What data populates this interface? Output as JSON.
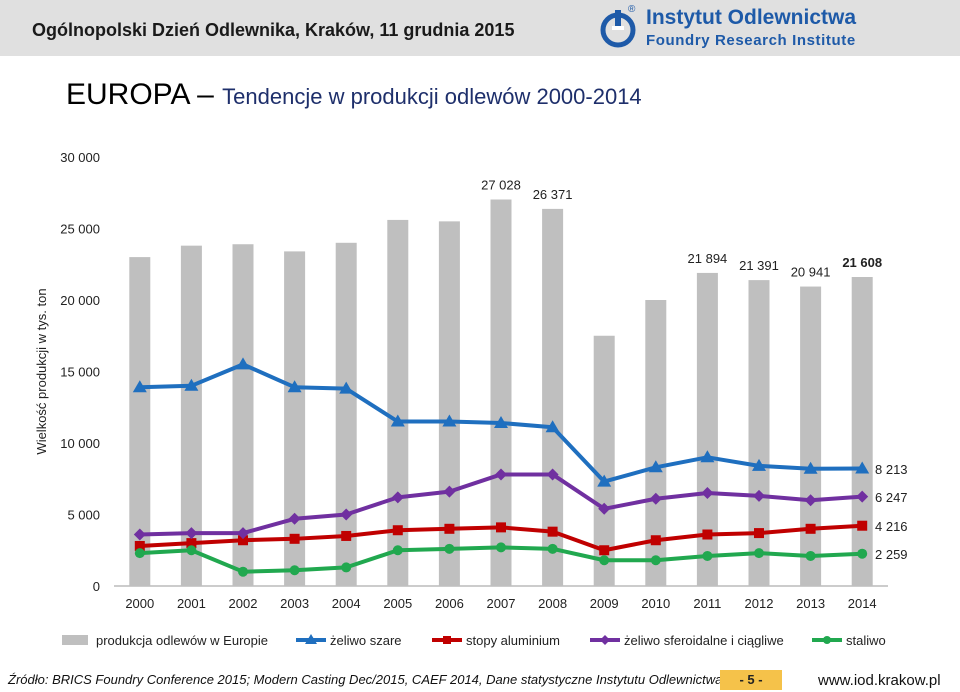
{
  "header": {
    "title": "Ogólnopolski Dzień Odlewnika, Kraków, 11 grudnia 2015",
    "logo_name": "Instytut Odlewnictwa",
    "logo_sub": "Foundry Research Institute",
    "logo_reg": "®"
  },
  "main_title": {
    "region": "EUROPA",
    "dash": " – ",
    "subtitle": "Tendencje w produkcji odlewów 2000-2014"
  },
  "colors": {
    "bar": "#bfbfbf",
    "zeliwo_szare": "#1f6fbf",
    "stopy_aluminium": "#c00000",
    "zeliwo_sferoidalne": "#7030a0",
    "staliwo": "#21a84f"
  },
  "chart_data": {
    "type": "bar+line",
    "title": "EUROPA – Tendencje w produkcji odlewów 2000-2014",
    "ylabel": "Wielkość produkcji w tys. ton",
    "ylim": [
      0,
      30000
    ],
    "yticks": [
      "0",
      "5 000",
      "10 000",
      "15 000",
      "20 000",
      "25 000",
      "30 000"
    ],
    "ytick_values": [
      0,
      5000,
      10000,
      15000,
      20000,
      25000,
      30000
    ],
    "categories": [
      "2000",
      "2001",
      "2002",
      "2003",
      "2004",
      "2005",
      "2006",
      "2007",
      "2008",
      "2009",
      "2010",
      "2011",
      "2012",
      "2013",
      "2014"
    ],
    "bar_series": {
      "name": "produkcja odlewów w Europie",
      "values": [
        23000,
        23800,
        23900,
        23400,
        24000,
        25600,
        25500,
        27028,
        26371,
        17500,
        20000,
        21894,
        21391,
        20941,
        21608
      ]
    },
    "bar_labels": [
      {
        "index": 7,
        "text": "27 028",
        "bold": false
      },
      {
        "index": 8,
        "text": "26 371",
        "bold": false
      },
      {
        "index": 11,
        "text": "21 894",
        "bold": false
      },
      {
        "index": 12,
        "text": "21 391",
        "bold": false
      },
      {
        "index": 13,
        "text": "20 941",
        "bold": false
      },
      {
        "index": 14,
        "text": "21 608",
        "bold": true
      }
    ],
    "line_series": [
      {
        "name": "żeliwo szare",
        "key": "zeliwo_szare",
        "marker": "triangle",
        "end_label": "8 213",
        "values": [
          13900,
          14000,
          15500,
          13900,
          13800,
          11500,
          11500,
          11400,
          11100,
          7300,
          8300,
          9000,
          8400,
          8200,
          8213
        ]
      },
      {
        "name": "stopy aluminium",
        "key": "stopy_aluminium",
        "marker": "square",
        "end_label": "4 216",
        "values": [
          2800,
          3000,
          3200,
          3300,
          3500,
          3900,
          4000,
          4100,
          3800,
          2500,
          3200,
          3600,
          3700,
          4000,
          4216
        ]
      },
      {
        "name": "żeliwo sferoidalne i ciągliwe",
        "key": "zeliwo_sferoidalne",
        "marker": "diamond",
        "end_label": "6 247",
        "values": [
          3600,
          3700,
          3700,
          4700,
          5000,
          6200,
          6600,
          7800,
          7800,
          5400,
          6100,
          6500,
          6300,
          6000,
          6247
        ]
      },
      {
        "name": "staliwo",
        "key": "staliwo",
        "marker": "circle",
        "end_label": "2 259",
        "values": [
          2300,
          2500,
          1000,
          1100,
          1300,
          2500,
          2600,
          2700,
          2600,
          1800,
          1800,
          2100,
          2300,
          2100,
          2259
        ]
      }
    ],
    "legend": [
      "produkcja odlewów w Europie",
      "żeliwo szare",
      "stopy aluminium",
      "żeliwo sferoidalne i ciągliwe",
      "staliwo"
    ],
    "legend_position": "bottom",
    "grid": false
  },
  "footer": {
    "source": "Źródło: BRICS Foundry Conference 2015; Modern Casting Dec/2015, CAEF 2014, Dane statystyczne Instytutu Odlewnictwa",
    "page": "- 5 -",
    "site": "www.iod.krakow.pl"
  }
}
